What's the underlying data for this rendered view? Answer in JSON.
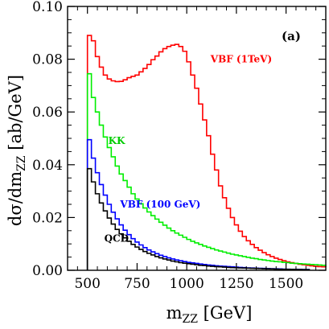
{
  "chart_data": {
    "type": "line",
    "panel_label": "(a)",
    "xlim": [
      400,
      1700
    ],
    "ylim": [
      0,
      0.1
    ],
    "x_ticks": [
      500,
      750,
      1000,
      1250,
      1500
    ],
    "y_ticks": [
      0.0,
      0.02,
      0.04,
      0.06,
      0.08,
      0.1
    ],
    "x_tick_labels": [
      "500",
      "750",
      "1000",
      "1250",
      "1500"
    ],
    "y_tick_labels": [
      "0.00",
      "0.02",
      "0.04",
      "0.06",
      "0.08",
      "0.10"
    ],
    "grid": false,
    "style": "step",
    "series": [
      {
        "name": "VBF (1TeV)",
        "color": "#ff0000",
        "x": [
          500,
          520,
          540,
          560,
          580,
          600,
          620,
          640,
          660,
          680,
          700,
          720,
          740,
          760,
          780,
          800,
          820,
          840,
          860,
          880,
          900,
          920,
          940,
          960,
          980,
          1000,
          1020,
          1040,
          1060,
          1080,
          1100,
          1120,
          1140,
          1160,
          1180,
          1200,
          1220,
          1240,
          1260,
          1280,
          1300,
          1320,
          1340,
          1360,
          1380,
          1400,
          1420,
          1440,
          1460,
          1480,
          1500,
          1520,
          1540,
          1560,
          1580,
          1600,
          1620,
          1640,
          1660,
          1680,
          1700
        ],
        "values": [
          0.089,
          0.087,
          0.081,
          0.077,
          0.074,
          0.0725,
          0.0718,
          0.0715,
          0.0716,
          0.0722,
          0.073,
          0.0735,
          0.074,
          0.0752,
          0.0765,
          0.078,
          0.0798,
          0.0812,
          0.0828,
          0.084,
          0.0848,
          0.0853,
          0.0856,
          0.0848,
          0.083,
          0.079,
          0.074,
          0.069,
          0.063,
          0.057,
          0.051,
          0.044,
          0.038,
          0.032,
          0.0275,
          0.0235,
          0.02,
          0.0172,
          0.0148,
          0.0128,
          0.0112,
          0.0098,
          0.0086,
          0.0076,
          0.0067,
          0.0059,
          0.0052,
          0.0046,
          0.0041,
          0.0036,
          0.0032,
          0.0029,
          0.0026,
          0.0023,
          0.0021,
          0.0019,
          0.0017,
          0.0015,
          0.0014,
          0.0013,
          0.0012
        ]
      },
      {
        "name": "KK",
        "color": "#00ee00",
        "x": [
          500,
          520,
          540,
          560,
          580,
          600,
          620,
          640,
          660,
          680,
          700,
          720,
          740,
          760,
          780,
          800,
          820,
          840,
          860,
          880,
          900,
          920,
          940,
          960,
          980,
          1000,
          1020,
          1040,
          1060,
          1080,
          1100,
          1120,
          1140,
          1160,
          1180,
          1200,
          1220,
          1240,
          1260,
          1280,
          1300,
          1320,
          1340,
          1360,
          1380,
          1400,
          1420,
          1440,
          1460,
          1480,
          1500,
          1520,
          1540,
          1560,
          1580,
          1600,
          1620,
          1640,
          1660,
          1680,
          1700
        ],
        "values": [
          0.0745,
          0.0655,
          0.06,
          0.055,
          0.0505,
          0.0465,
          0.043,
          0.0395,
          0.0365,
          0.034,
          0.0315,
          0.029,
          0.027,
          0.0252,
          0.0236,
          0.0221,
          0.0207,
          0.0194,
          0.0182,
          0.0171,
          0.016,
          0.015,
          0.0141,
          0.0133,
          0.0125,
          0.0117,
          0.011,
          0.0104,
          0.0098,
          0.0092,
          0.0087,
          0.0082,
          0.0077,
          0.0073,
          0.0069,
          0.0065,
          0.0061,
          0.0058,
          0.0055,
          0.0052,
          0.0049,
          0.0046,
          0.0044,
          0.0041,
          0.0039,
          0.0037,
          0.0035,
          0.0033,
          0.0032,
          0.003,
          0.0029,
          0.0027,
          0.0026,
          0.0025,
          0.0024,
          0.0023,
          0.0022,
          0.0021,
          0.002,
          0.0019,
          0.0018
        ]
      },
      {
        "name": "VBF (100 GeV)",
        "color": "#0000ff",
        "x": [
          500,
          520,
          540,
          560,
          580,
          600,
          620,
          640,
          660,
          680,
          700,
          720,
          740,
          760,
          780,
          800,
          820,
          840,
          860,
          880,
          900,
          920,
          940,
          960,
          980,
          1000,
          1020,
          1040,
          1060,
          1080,
          1100,
          1120,
          1140,
          1160,
          1180,
          1200,
          1220,
          1240,
          1260,
          1280,
          1300,
          1320,
          1340,
          1360,
          1380,
          1400,
          1420,
          1440,
          1460,
          1480,
          1500,
          1520,
          1540,
          1560,
          1580,
          1600
        ],
        "values": [
          0.0495,
          0.0425,
          0.037,
          0.0325,
          0.0285,
          0.025,
          0.022,
          0.0195,
          0.0172,
          0.0152,
          0.0135,
          0.012,
          0.0107,
          0.0096,
          0.0086,
          0.0077,
          0.007,
          0.0063,
          0.0057,
          0.0052,
          0.0047,
          0.0043,
          0.0039,
          0.0036,
          0.0033,
          0.003,
          0.0028,
          0.0026,
          0.0024,
          0.0022,
          0.002,
          0.0019,
          0.0017,
          0.0016,
          0.0015,
          0.0014,
          0.0013,
          0.0012,
          0.0011,
          0.001,
          0.0009,
          0.00085,
          0.0008,
          0.00075,
          0.0007,
          0.00065,
          0.0006,
          0.00055,
          0.0005,
          0.00045,
          0.0004,
          0.00038,
          0.00035,
          0.00032,
          0.0003,
          0.00028
        ]
      },
      {
        "name": "QCD",
        "color": "#000000",
        "x": [
          500,
          520,
          540,
          560,
          580,
          600,
          620,
          640,
          660,
          680,
          700,
          720,
          740,
          760,
          780,
          800,
          820,
          840,
          860,
          880,
          900,
          920,
          940,
          960,
          980,
          1000,
          1020,
          1040,
          1060,
          1080,
          1100,
          1120,
          1140,
          1160,
          1180,
          1200,
          1220,
          1240,
          1260,
          1280,
          1300,
          1320,
          1340,
          1360,
          1380,
          1400,
          1420,
          1440,
          1460,
          1480,
          1500,
          1520,
          1540,
          1560,
          1580,
          1600
        ],
        "values": [
          0.0385,
          0.0335,
          0.029,
          0.0255,
          0.0225,
          0.0198,
          0.0175,
          0.0155,
          0.0138,
          0.0123,
          0.011,
          0.0098,
          0.0088,
          0.0079,
          0.0071,
          0.0064,
          0.0058,
          0.0052,
          0.0047,
          0.0043,
          0.0039,
          0.0035,
          0.0032,
          0.0029,
          0.0027,
          0.0025,
          0.0023,
          0.0021,
          0.0019,
          0.0018,
          0.0016,
          0.0015,
          0.0014,
          0.0013,
          0.0012,
          0.0011,
          0.001,
          0.00095,
          0.0009,
          0.00085,
          0.0008,
          0.00075,
          0.0007,
          0.00065,
          0.0006,
          0.00055,
          0.0005,
          0.00045,
          0.0004,
          0.00038,
          0.00035,
          0.00032,
          0.0003,
          0.00028,
          0.00026,
          0.00024
        ]
      }
    ],
    "series_labels": [
      {
        "text": "VBF (1TeV)",
        "color": "#ff0000",
        "x": 1120,
        "y": 0.0788
      },
      {
        "text": "KK",
        "color": "#00cc00",
        "x": 605,
        "y": 0.0478
      },
      {
        "text": "VBF (100 GeV)",
        "color": "#0000ff",
        "x": 665,
        "y": 0.0238
      },
      {
        "text": "QCD",
        "color": "#000000",
        "x": 585,
        "y": 0.0108
      }
    ]
  }
}
